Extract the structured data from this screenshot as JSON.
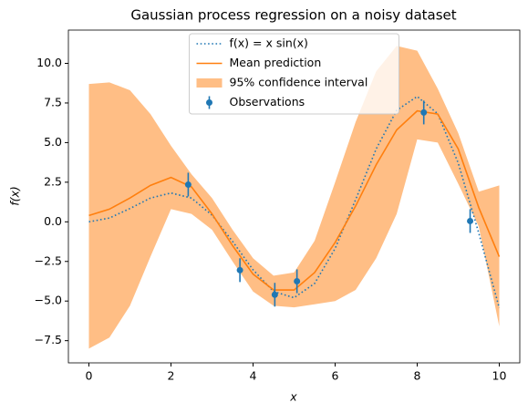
{
  "chart_data": {
    "type": "line",
    "title": "Gaussian process regression on a noisy dataset",
    "xlabel": "x",
    "ylabel": "f(x)",
    "xlim": [
      -0.5,
      10.5
    ],
    "ylim": [
      -8.9,
      12.1
    ],
    "xticks": [
      0,
      2,
      4,
      6,
      8,
      10
    ],
    "yticks": [
      {
        "value": -7.5,
        "label": "−7.5"
      },
      {
        "value": -5,
        "label": "−5.0"
      },
      {
        "value": -2.5,
        "label": "−2.5"
      },
      {
        "value": 0,
        "label": "0.0"
      },
      {
        "value": 2.5,
        "label": "2.5"
      },
      {
        "value": 5,
        "label": "5.0"
      },
      {
        "value": 7.5,
        "label": "7.5"
      },
      {
        "value": 10,
        "label": "10.0"
      }
    ],
    "legend": "upper center",
    "x": [
      0,
      0.5,
      1,
      1.5,
      2,
      2.5,
      3,
      3.5,
      4,
      4.5,
      5,
      5.5,
      6,
      6.5,
      7,
      7.5,
      8,
      8.5,
      9,
      9.5,
      10
    ],
    "series": [
      {
        "name": "f(x) = x sin(x)",
        "color": "#1f77b4",
        "dash": "dotted",
        "values": [
          0,
          0.24,
          0.84,
          1.5,
          1.82,
          1.5,
          0.42,
          -1.23,
          -3.03,
          -4.4,
          -4.79,
          -3.89,
          -1.68,
          1.4,
          4.6,
          7.04,
          7.91,
          6.82,
          3.71,
          -0.71,
          -5.44
        ]
      },
      {
        "name": "Mean prediction",
        "color": "#ff7f0e",
        "dash": "solid",
        "values": [
          0.4,
          0.8,
          1.5,
          2.3,
          2.8,
          2.2,
          0.5,
          -1.5,
          -3.3,
          -4.3,
          -4.3,
          -3.2,
          -1.3,
          1.0,
          3.6,
          5.8,
          7.0,
          6.8,
          4.6,
          0.9,
          -2.2
        ]
      }
    ],
    "band": {
      "name": "95% confidence interval",
      "color": "#ffbe85",
      "upper": [
        8.7,
        8.8,
        8.3,
        6.8,
        4.8,
        3.0,
        1.5,
        -0.5,
        -2.3,
        -3.4,
        -3.2,
        -1.2,
        2.5,
        6.3,
        9.5,
        11.1,
        10.8,
        8.4,
        5.6,
        1.9,
        2.3
      ],
      "lower": [
        -8.0,
        -7.3,
        -5.3,
        -2.2,
        0.8,
        0.5,
        -0.5,
        -2.5,
        -4.4,
        -5.3,
        -5.4,
        -5.2,
        -5.0,
        -4.3,
        -2.3,
        0.5,
        5.2,
        5.0,
        2.4,
        -0.3,
        -6.6
      ]
    },
    "observations": {
      "name": "Observations",
      "color": "#1f77b4",
      "x": [
        2.42,
        3.68,
        4.53,
        5.07,
        8.16,
        9.29
      ],
      "y": [
        2.35,
        -3.05,
        -4.6,
        -3.75,
        6.9,
        0.05
      ],
      "error": [
        0.75,
        0.75,
        0.75,
        0.75,
        0.75,
        0.75
      ]
    }
  }
}
